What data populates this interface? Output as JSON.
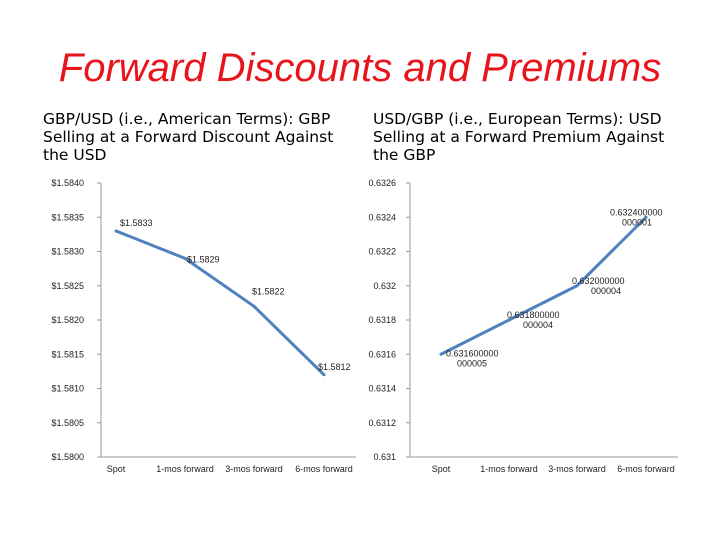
{
  "title": "Forward Discounts and Premiums",
  "colors": {
    "title": "#e8141c",
    "line": "#4f81bd",
    "axis": "#9a9a9a"
  },
  "chart_data": [
    {
      "type": "line",
      "title": "GBP/USD (i.e., American Terms): GBP Selling at a Forward Discount Against the USD",
      "categories": [
        "Spot",
        "1-mos forward",
        "3-mos forward",
        "6-mos forward"
      ],
      "series": [
        {
          "name": "GBP/USD",
          "values": [
            1.5833,
            1.5829,
            1.5822,
            1.5812
          ]
        }
      ],
      "data_labels": [
        "$1.5833",
        "$1.5829",
        "$1.5822",
        "$1.5812"
      ],
      "ylim": [
        1.58,
        1.584
      ],
      "yticks": [
        1.584,
        1.5835,
        1.583,
        1.5825,
        1.582,
        1.5815,
        1.581,
        1.5805,
        1.58
      ],
      "ytick_labels": [
        "$1.5840",
        "$1.5835",
        "$1.5830",
        "$1.5825",
        "$1.5820",
        "$1.5815",
        "$1.5810",
        "$1.5805",
        "$1.5800"
      ],
      "grid": false,
      "legend": "none"
    },
    {
      "type": "line",
      "title": "USD/GBP (i.e., European Terms): USD Selling at a Forward Premium Against the GBP",
      "categories": [
        "Spot",
        "1-mos forward",
        "3-mos forward",
        "6-mos forward"
      ],
      "series": [
        {
          "name": "USD/GBP",
          "values": [
            0.6316,
            0.6318,
            0.632,
            0.6324
          ]
        }
      ],
      "data_labels": [
        [
          "0.631600000",
          "000005"
        ],
        [
          "0.631800000",
          "000004"
        ],
        [
          "0.632000000",
          "000004"
        ],
        [
          "0.632400000",
          "000001"
        ]
      ],
      "ylim": [
        0.631,
        0.6326
      ],
      "yticks": [
        0.6326,
        0.6324,
        0.6322,
        0.632,
        0.6318,
        0.6316,
        0.6314,
        0.6312,
        0.631
      ],
      "ytick_labels": [
        "0.6326",
        "0.6324",
        "0.6322",
        "0.632",
        "0.6318",
        "0.6316",
        "0.6314",
        "0.6312",
        "0.631"
      ],
      "grid": false,
      "legend": "none"
    }
  ]
}
